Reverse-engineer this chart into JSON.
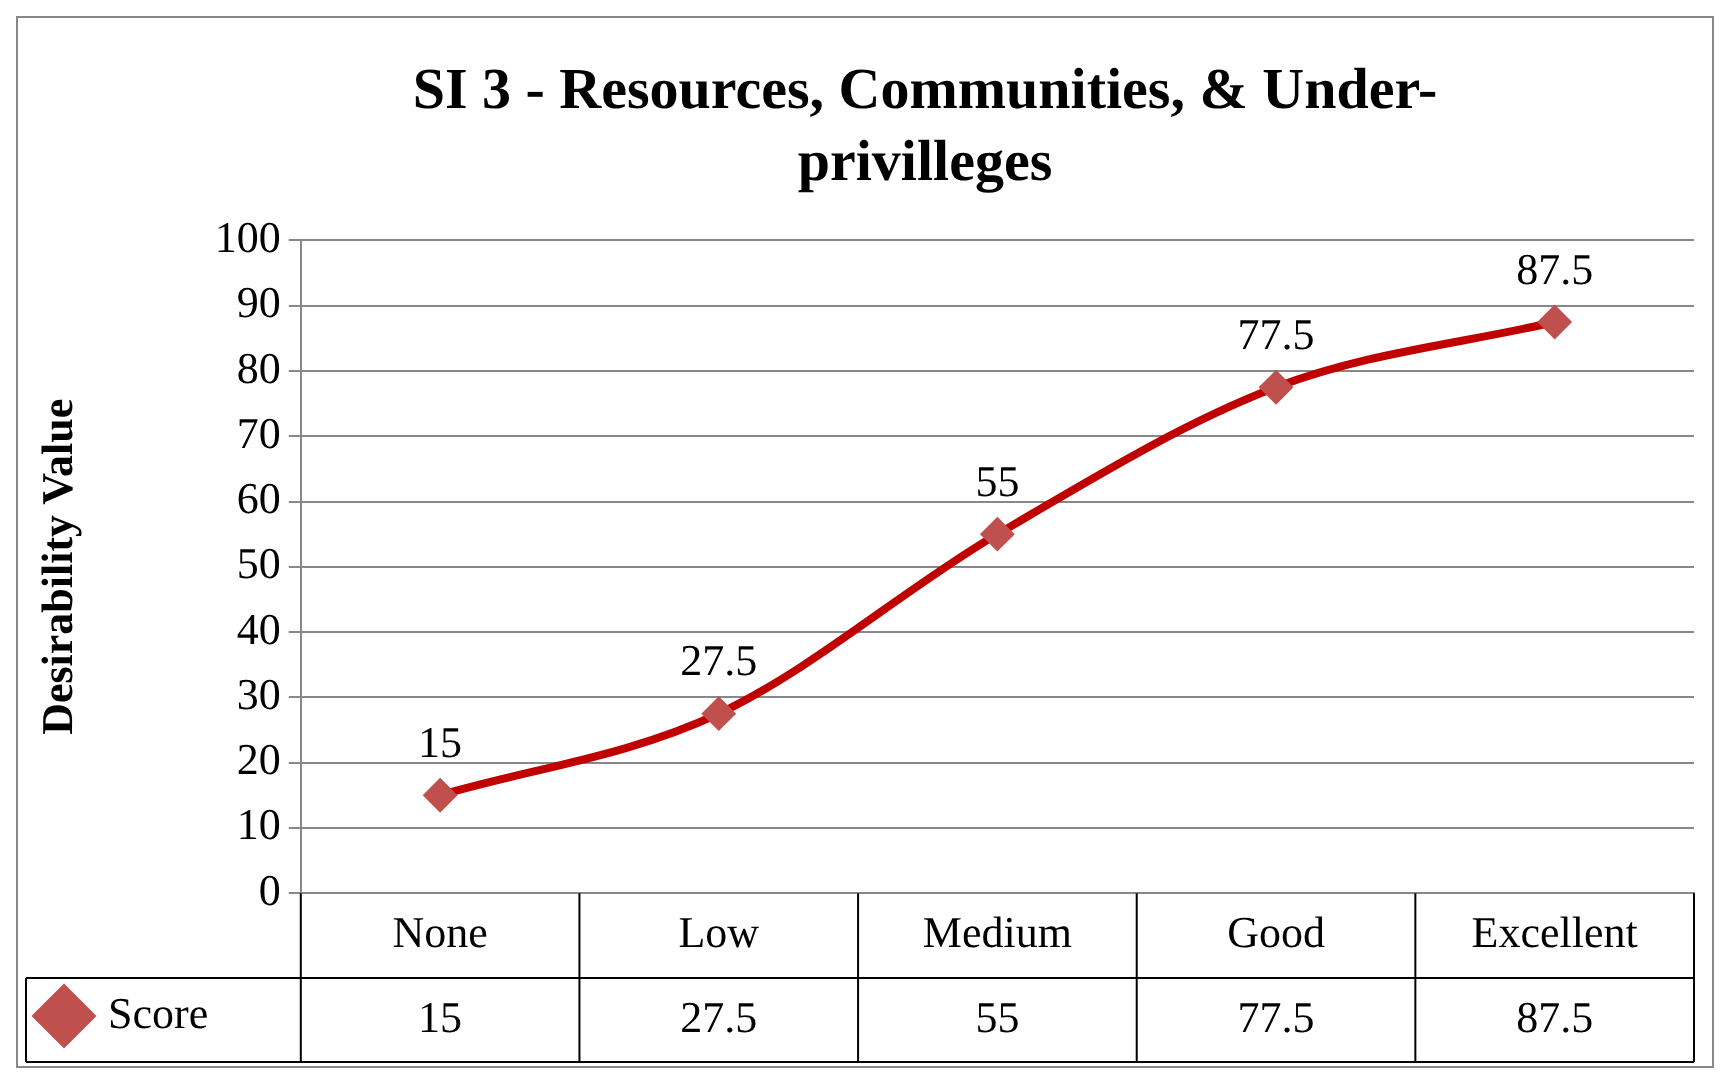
{
  "chart_data": {
    "type": "line",
    "title": "SI 3 - Resources, Communities, & Under-privilleges",
    "ylabel": "Desirability Value",
    "categories": [
      "None",
      "Low",
      "Medium",
      "Good",
      "Excellent"
    ],
    "series": [
      {
        "name": "Score",
        "color": "#c00000",
        "values": [
          15,
          27.5,
          55,
          77.5,
          87.5
        ],
        "value_labels": [
          "15",
          "27.5",
          "55",
          "77.5",
          "87.5"
        ]
      }
    ],
    "ylim": [
      0,
      100
    ],
    "yticks": [
      0,
      10,
      20,
      30,
      40,
      50,
      60,
      70,
      80,
      90,
      100
    ],
    "annotations": [
      "15",
      "27.5",
      "55",
      "77.5",
      "87.5"
    ],
    "grid": "y",
    "legend": "bottom left",
    "marker": "diamond",
    "data_labels": true
  }
}
